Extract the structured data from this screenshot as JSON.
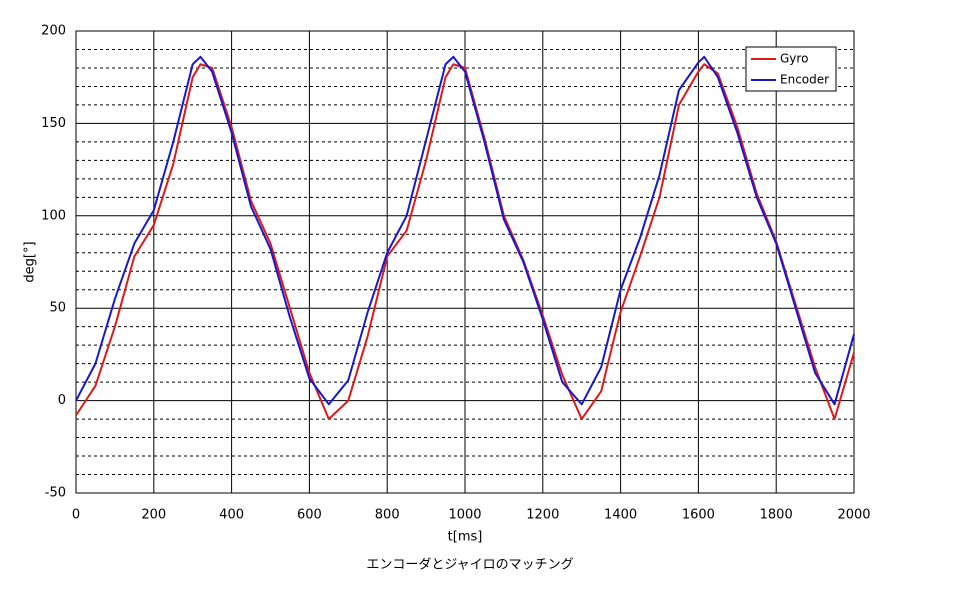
{
  "chart_data": {
    "type": "line",
    "title": "エンコーダとジャイロのマッチング",
    "x_label": "t[ms]",
    "y_label": "deg[°]",
    "x": [
      0,
      50,
      100,
      150,
      200,
      250,
      300,
      320,
      350,
      400,
      450,
      500,
      550,
      600,
      650,
      700,
      750,
      800,
      850,
      900,
      950,
      970,
      1000,
      1050,
      1100,
      1150,
      1200,
      1250,
      1300,
      1350,
      1400,
      1450,
      1500,
      1550,
      1600,
      1615,
      1650,
      1700,
      1750,
      1800,
      1850,
      1900,
      1950,
      2000
    ],
    "series": [
      {
        "name": "Gyro",
        "color": "#e01818",
        "values": [
          -8,
          8,
          40,
          78,
          95,
          128,
          175,
          182,
          180,
          148,
          108,
          85,
          50,
          15,
          -10,
          0,
          35,
          78,
          92,
          130,
          175,
          182,
          180,
          142,
          100,
          76,
          46,
          14,
          -10,
          5,
          48,
          78,
          110,
          160,
          178,
          182,
          177,
          148,
          112,
          86,
          52,
          18,
          -10,
          26
        ]
      },
      {
        "name": "Encoder",
        "color": "#1818d0",
        "values": [
          0,
          20,
          55,
          85,
          103,
          140,
          182,
          186,
          178,
          145,
          105,
          82,
          45,
          12,
          -2,
          11,
          48,
          80,
          100,
          141,
          182,
          186,
          178,
          140,
          98,
          75,
          44,
          10,
          -2,
          18,
          60,
          88,
          122,
          168,
          183,
          186,
          175,
          145,
          110,
          85,
          50,
          15,
          -2,
          36
        ]
      }
    ],
    "xlim": [
      0,
      2000
    ],
    "xticks": [
      0,
      200,
      400,
      600,
      800,
      1000,
      1200,
      1400,
      1600,
      1800,
      2000
    ],
    "ylim": [
      -50,
      200
    ],
    "yticks": [
      -50,
      0,
      50,
      100,
      150,
      200
    ],
    "minor_yticks": [
      -40,
      -30,
      -20,
      -10,
      10,
      20,
      30,
      40,
      60,
      70,
      80,
      90,
      110,
      120,
      130,
      140,
      160,
      170,
      180,
      190
    ],
    "grid": true,
    "legend": "upper right"
  }
}
